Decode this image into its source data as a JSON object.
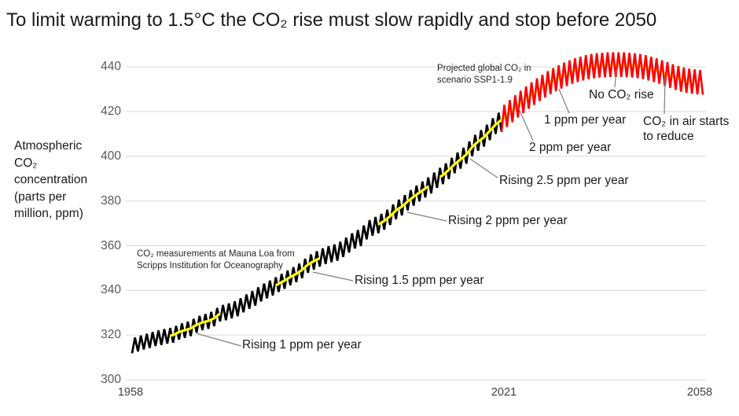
{
  "title": "To limit warming to 1.5°C the CO₂ rise must slow rapidly and stop before 2050",
  "y_axis": {
    "label": "Atmospheric\nCO₂\nconcentration\n(parts per\nmillion, ppm)",
    "ticks": [
      "440",
      "420",
      "400",
      "380",
      "360",
      "340",
      "320",
      "300"
    ]
  },
  "x_axis": {
    "ticks": [
      "1958",
      "2021",
      "2058"
    ]
  },
  "notes": {
    "measured": "CO₂ measurements at Mauna Loa from Scripps Institution for Oceanography",
    "projected": "Projected global CO₂ in scenario SSP1-1.9"
  },
  "annotations": {
    "rising1": "Rising 1 ppm per year",
    "rising15": "Rising 1.5 ppm per year",
    "rising2": "Rising 2 ppm per year",
    "rising25": "Rising 2.5 ppm per year",
    "p2": "2 ppm per year",
    "p1": "1 ppm per year",
    "norise": "No CO₂ rise",
    "reduce": "CO₂ in air starts to reduce"
  },
  "colors": {
    "measured": "#000000",
    "projected": "#FF0000",
    "trend": "#FFFF00",
    "gridline": "#D9D9D9",
    "leader": "#808080",
    "y_tick_text": "#595959",
    "x_tick_text": "#404040"
  },
  "chart_data": {
    "type": "line",
    "title": "To limit warming to 1.5°C the CO₂ rise must slow rapidly and stop before 2050",
    "xlabel": "",
    "ylabel": "Atmospheric CO₂ concentration (parts per million, ppm)",
    "xlim": [
      1958,
      2058
    ],
    "ylim": [
      300,
      445
    ],
    "yticks": [
      300,
      320,
      340,
      360,
      380,
      400,
      420,
      440
    ],
    "xticks": [
      1958,
      2021,
      2058
    ],
    "grid": true,
    "legend_position": "none",
    "series": [
      {
        "name": "CO₂ measurements at Mauna Loa from Scripps Institution for Oceanography",
        "color": "#000000",
        "start_year": 1958,
        "end_year": 2021,
        "annual_mean_ppm": [
          315.2,
          316.0,
          316.9,
          317.6,
          318.5,
          319.0,
          319.6,
          320.0,
          321.4,
          322.2,
          323.0,
          324.6,
          325.7,
          326.3,
          327.5,
          329.7,
          330.2,
          331.1,
          332.0,
          333.8,
          335.4,
          336.8,
          338.7,
          340.1,
          341.4,
          343.0,
          344.4,
          346.0,
          347.4,
          349.2,
          351.6,
          353.1,
          354.4,
          355.6,
          356.4,
          357.1,
          358.8,
          360.8,
          362.6,
          363.7,
          366.7,
          368.4,
          369.5,
          371.1,
          373.2,
          375.8,
          377.5,
          379.8,
          381.9,
          383.8,
          385.6,
          387.4,
          389.9,
          391.6,
          393.9,
          396.5,
          398.6,
          400.8,
          404.2,
          406.6,
          408.5,
          411.4,
          414.2,
          416.4
        ]
      },
      {
        "name": "Projected global CO₂ in scenario SSP1-1.9",
        "color": "#FF0000",
        "start_year": 2021,
        "end_year": 2058,
        "annual_mean_ppm": [
          416.4,
          418.6,
          420.7,
          422.8,
          424.8,
          426.7,
          428.5,
          430.2,
          431.8,
          433.3,
          434.6,
          435.8,
          436.9,
          437.9,
          438.7,
          439.4,
          440.0,
          440.4,
          440.7,
          440.9,
          441.0,
          441.0,
          441.0,
          440.9,
          440.7,
          440.4,
          440.0,
          439.4,
          438.7,
          437.9,
          437.0,
          436.1,
          435.2,
          434.4,
          433.9,
          433.5,
          433.2,
          433.0
        ]
      }
    ],
    "seasonal_cycle": {
      "shape": "sawtooth",
      "period_years": 1,
      "half_amplitude_ppm_measured_1958": 3.3,
      "half_amplitude_ppm_measured_2021": 4.2,
      "half_amplitude_ppm_projected": 5.5
    },
    "trend_line": {
      "color": "#FFFF00",
      "segments": [
        {
          "label": "Rising 1 ppm per year",
          "from_year": 1964.5,
          "to_year": 1973
        },
        {
          "label": "Rising 1.5 ppm per year",
          "from_year": 1982.5,
          "to_year": 1990
        },
        {
          "label": "Rising 2 ppm per year",
          "from_year": 2000,
          "to_year": 2008.5
        },
        {
          "label": "Rising 2.5 ppm per year, then 2 ppm, 1 ppm, no rise, then reducing",
          "from_year": 2010.5,
          "to_year": 2056
        }
      ]
    }
  }
}
